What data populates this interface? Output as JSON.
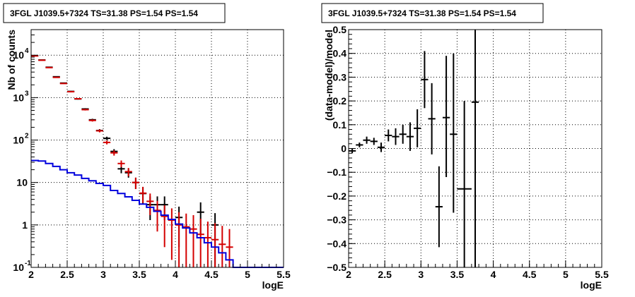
{
  "chart_data": [
    {
      "type": "step-errorbar",
      "title": "3FGL J1039.5+7324 TS=31.38 PS=1.54 PS=1.54",
      "xlabel": "logE",
      "ylabel": "Nb of counts",
      "xlim": [
        2,
        5.5
      ],
      "ylim": [
        0.1,
        40000
      ],
      "yscale": "log",
      "grid": true,
      "x_ticks": [
        2,
        2.5,
        3,
        3.5,
        4,
        4.5,
        5,
        5.5
      ],
      "x_tick_labels": [
        "2",
        "2.5",
        "3",
        "3.5",
        "4",
        "4.5",
        "5",
        "5.5"
      ],
      "y_tick_labels": [
        {
          "value": 0.1,
          "label": "10",
          "sup": "-1"
        },
        {
          "value": 1,
          "label": "1",
          "sup": ""
        },
        {
          "value": 10,
          "label": "10",
          "sup": ""
        },
        {
          "value": 100,
          "label": "10",
          "sup": "2"
        },
        {
          "value": 1000,
          "label": "10",
          "sup": "3"
        },
        {
          "value": 10000,
          "label": "10",
          "sup": "4"
        }
      ],
      "bin_width": 0.1,
      "series": [
        {
          "color": "#000000",
          "style": "errorbar",
          "x": [
            2.05,
            2.15,
            2.25,
            2.35,
            2.45,
            2.55,
            2.65,
            2.75,
            2.85,
            2.95,
            3.05,
            3.15,
            3.25,
            3.35,
            3.45,
            3.55,
            3.65,
            3.75,
            3.85,
            4.05,
            4.35,
            4.55
          ],
          "y": [
            9700,
            7700,
            5200,
            3100,
            2200,
            1400,
            930,
            540,
            300,
            168,
            110,
            54,
            21,
            17,
            10,
            5.5,
            3,
            3,
            3,
            1.5,
            2,
            1
          ],
          "yerr_low": [
            100,
            90,
            70,
            55,
            45,
            37,
            30,
            23,
            17,
            13,
            10,
            7,
            4.5,
            4,
            3,
            2.3,
            1.7,
            1.7,
            1.7,
            1.2,
            1.4,
            0.9
          ],
          "yerr_high": [
            100,
            90,
            70,
            55,
            45,
            37,
            30,
            23,
            17,
            13,
            10,
            7,
            4.5,
            4,
            3,
            2.3,
            1.7,
            1.7,
            1.7,
            1.2,
            1.4,
            0.9
          ]
        },
        {
          "color": "#d40000",
          "style": "errorbar",
          "x": [
            2.05,
            2.15,
            2.25,
            2.35,
            2.45,
            2.55,
            2.65,
            2.75,
            2.85,
            2.95,
            3.05,
            3.15,
            3.25,
            3.35,
            3.45,
            3.55,
            3.65,
            3.75,
            3.85,
            3.95,
            4.05,
            4.15,
            4.25,
            4.35,
            4.45,
            4.55,
            4.65,
            4.75
          ],
          "y": [
            9600,
            7600,
            5100,
            3000,
            2150,
            1380,
            940,
            520,
            290,
            165,
            88,
            50,
            28,
            18,
            10,
            5.6,
            3.6,
            2.2,
            1.6,
            1.3,
            1,
            0.9,
            0.8,
            0.6,
            0.5,
            0.45,
            0.35,
            0.3
          ],
          "yerr_low": [
            100,
            90,
            70,
            55,
            45,
            37,
            30,
            23,
            17,
            13,
            9,
            7,
            5,
            4,
            3,
            2.3,
            1.9,
            1.5,
            1.3,
            1.15,
            0.99,
            0.89,
            0.79,
            0.59,
            0.49,
            0.44,
            0.34,
            0.29
          ],
          "yerr_high": [
            100,
            90,
            70,
            55,
            45,
            37,
            30,
            23,
            17,
            13,
            9,
            7,
            5,
            4,
            3,
            2.3,
            1.9,
            1.5,
            1.3,
            1.15,
            1.0,
            0.95,
            0.9,
            0.8,
            0.7,
            0.65,
            0.6,
            0.5
          ]
        },
        {
          "color": "#0000dd",
          "style": "step",
          "x_edges": [
            2.0,
            2.1,
            2.2,
            2.3,
            2.4,
            2.5,
            2.6,
            2.7,
            2.8,
            2.9,
            3.0,
            3.1,
            3.2,
            3.3,
            3.4,
            3.5,
            3.6,
            3.7,
            3.8,
            3.9,
            4.0,
            4.1,
            4.2,
            4.3,
            4.4,
            4.5,
            4.6,
            4.7,
            4.8,
            5.5
          ],
          "y": [
            33,
            32,
            28,
            24,
            20,
            17,
            15,
            12.5,
            11,
            9.5,
            8.5,
            6.5,
            5.5,
            4.6,
            3.8,
            3.1,
            2.6,
            2.1,
            1.7,
            1.35,
            1.05,
            0.85,
            0.65,
            0.5,
            0.38,
            0.3,
            0.22,
            0.15,
            0.1
          ]
        }
      ]
    },
    {
      "type": "errorbar",
      "title": "3FGL J1039.5+7324 TS=31.38 PS=1.54 PS=1.54",
      "xlabel": "logE",
      "ylabel": "(data-model)/model",
      "xlim": [
        2,
        5.5
      ],
      "ylim": [
        -0.5,
        0.5
      ],
      "grid": true,
      "x_ticks": [
        2,
        2.5,
        3,
        3.5,
        4,
        4.5,
        5,
        5.5
      ],
      "x_tick_labels": [
        "2",
        "2.5",
        "3",
        "3.5",
        "4",
        "4.5",
        "5",
        "5.5"
      ],
      "y_ticks": [
        -0.5,
        -0.4,
        -0.3,
        -0.2,
        -0.1,
        0,
        0.1,
        0.2,
        0.3,
        0.4,
        0.5
      ],
      "y_tick_labels": [
        "−0.5",
        "−0.4",
        "−0.3",
        "−0.2",
        "−0.1",
        "0",
        "0.1",
        "0.2",
        "0.3",
        "0.4",
        "0.5"
      ],
      "bin_width": 0.1,
      "series": [
        {
          "color": "#000000",
          "x": [
            2.05,
            2.15,
            2.25,
            2.35,
            2.45,
            2.55,
            2.65,
            2.75,
            2.85,
            2.95,
            3.05,
            3.15,
            3.25,
            3.35,
            3.45,
            3.6,
            3.75
          ],
          "y": [
            -0.01,
            0.015,
            0.035,
            0.03,
            0.005,
            0.055,
            0.05,
            0.06,
            0.05,
            0.085,
            0.29,
            0.125,
            -0.245,
            0.13,
            0.06,
            -0.17,
            0.195
          ],
          "yerr_low": [
            0.01,
            0.01,
            0.015,
            0.015,
            0.02,
            0.025,
            0.035,
            0.04,
            0.06,
            0.08,
            0.12,
            0.15,
            0.17,
            0.25,
            0.33,
            0.33,
            0.7
          ],
          "yerr_high": [
            0.01,
            0.01,
            0.015,
            0.015,
            0.02,
            0.025,
            0.035,
            0.04,
            0.06,
            0.08,
            0.12,
            0.15,
            0.17,
            0.26,
            0.34,
            0.37,
            0.7
          ],
          "xerr": [
            0.05,
            0.05,
            0.05,
            0.05,
            0.05,
            0.05,
            0.05,
            0.05,
            0.05,
            0.05,
            0.05,
            0.05,
            0.05,
            0.05,
            0.05,
            0.1,
            0.05
          ]
        }
      ]
    }
  ]
}
